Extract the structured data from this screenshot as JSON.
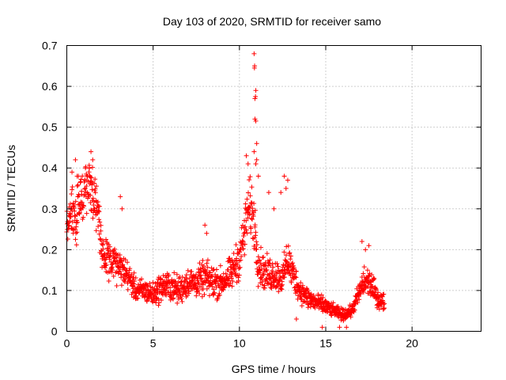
{
  "chart_data": {
    "type": "scatter",
    "title": "Day 103 of 2020, SRMTID for receiver samo",
    "xlabel": "GPS time / hours",
    "ylabel": "SRMTID / TECUs",
    "xlim": [
      0,
      24
    ],
    "ylim": [
      0,
      0.7
    ],
    "x_ticks": [
      0,
      5,
      10,
      15,
      20
    ],
    "y_ticks": [
      0,
      0.1,
      0.2,
      0.3,
      0.4,
      0.5,
      0.6,
      0.7
    ],
    "x_tick_labels": [
      "0",
      "5",
      "10",
      "15",
      "20"
    ],
    "y_tick_labels": [
      "0",
      "0.1",
      "0.2",
      "0.3",
      "0.4",
      "0.5",
      "0.6",
      "0.7"
    ],
    "grid": true,
    "marker": "+",
    "color": "#ff0000",
    "series": [
      {
        "name": "samo",
        "envelope": {
          "x": [
            0.0,
            0.3,
            0.5,
            0.8,
            1.0,
            1.3,
            1.5,
            1.8,
            2.0,
            2.5,
            3.0,
            3.5,
            4.0,
            4.5,
            5.0,
            5.5,
            6.0,
            6.5,
            7.0,
            7.5,
            8.0,
            8.5,
            9.0,
            9.5,
            10.0,
            10.3,
            10.5,
            10.7,
            10.9,
            11.1,
            11.3,
            11.6,
            12.0,
            12.5,
            12.8,
            13.0,
            13.5,
            14.0,
            14.5,
            15.0,
            15.5,
            16.0,
            16.5,
            17.0,
            17.2,
            17.5,
            17.8,
            18.0,
            18.4
          ],
          "y": [
            0.25,
            0.3,
            0.26,
            0.33,
            0.34,
            0.36,
            0.34,
            0.3,
            0.2,
            0.17,
            0.16,
            0.14,
            0.1,
            0.1,
            0.09,
            0.11,
            0.11,
            0.1,
            0.12,
            0.12,
            0.13,
            0.12,
            0.12,
            0.14,
            0.18,
            0.24,
            0.3,
            0.3,
            0.25,
            0.17,
            0.15,
            0.14,
            0.14,
            0.13,
            0.18,
            0.15,
            0.1,
            0.08,
            0.07,
            0.06,
            0.05,
            0.04,
            0.05,
            0.1,
            0.12,
            0.12,
            0.1,
            0.08,
            0.07
          ],
          "spread": [
            0.06,
            0.08,
            0.1,
            0.1,
            0.1,
            0.1,
            0.1,
            0.08,
            0.07,
            0.06,
            0.06,
            0.05,
            0.04,
            0.04,
            0.04,
            0.05,
            0.05,
            0.05,
            0.05,
            0.05,
            0.06,
            0.06,
            0.05,
            0.06,
            0.07,
            0.09,
            0.1,
            0.1,
            0.1,
            0.08,
            0.06,
            0.06,
            0.06,
            0.05,
            0.08,
            0.06,
            0.04,
            0.04,
            0.03,
            0.03,
            0.02,
            0.02,
            0.02,
            0.04,
            0.06,
            0.05,
            0.04,
            0.03,
            0.03
          ]
        },
        "sample_step_hours": 0.012,
        "highlights": [
          {
            "x": 0.3,
            "y": 0.39
          },
          {
            "x": 0.5,
            "y": 0.42
          },
          {
            "x": 0.6,
            "y": 0.38
          },
          {
            "x": 1.4,
            "y": 0.44
          },
          {
            "x": 1.5,
            "y": 0.42
          },
          {
            "x": 1.3,
            "y": 0.4
          },
          {
            "x": 3.1,
            "y": 0.33
          },
          {
            "x": 3.2,
            "y": 0.3
          },
          {
            "x": 8.0,
            "y": 0.26
          },
          {
            "x": 8.1,
            "y": 0.24
          },
          {
            "x": 10.4,
            "y": 0.43
          },
          {
            "x": 10.5,
            "y": 0.41
          },
          {
            "x": 10.85,
            "y": 0.68
          },
          {
            "x": 10.88,
            "y": 0.65
          },
          {
            "x": 10.87,
            "y": 0.645
          },
          {
            "x": 10.95,
            "y": 0.59
          },
          {
            "x": 10.93,
            "y": 0.575
          },
          {
            "x": 10.9,
            "y": 0.57
          },
          {
            "x": 10.9,
            "y": 0.52
          },
          {
            "x": 10.95,
            "y": 0.515
          },
          {
            "x": 11.0,
            "y": 0.46
          },
          {
            "x": 11.0,
            "y": 0.42
          },
          {
            "x": 10.95,
            "y": 0.41
          },
          {
            "x": 10.85,
            "y": 0.44
          },
          {
            "x": 11.1,
            "y": 0.38
          },
          {
            "x": 11.7,
            "y": 0.34
          },
          {
            "x": 12.0,
            "y": 0.3
          },
          {
            "x": 12.6,
            "y": 0.38
          },
          {
            "x": 12.8,
            "y": 0.37
          },
          {
            "x": 12.7,
            "y": 0.35
          },
          {
            "x": 12.4,
            "y": 0.34
          },
          {
            "x": 13.3,
            "y": 0.03
          },
          {
            "x": 17.1,
            "y": 0.22
          },
          {
            "x": 17.3,
            "y": 0.2
          },
          {
            "x": 17.5,
            "y": 0.21
          },
          {
            "x": 14.8,
            "y": 0.01
          },
          {
            "x": 15.8,
            "y": 0.01
          },
          {
            "x": 16.2,
            "y": 0.01
          }
        ]
      }
    ]
  }
}
